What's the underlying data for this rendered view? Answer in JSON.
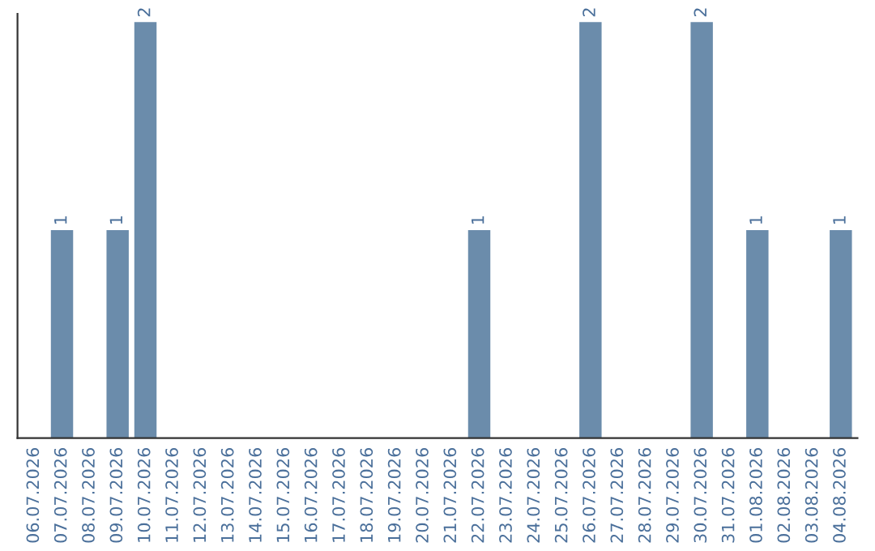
{
  "chart_data": {
    "type": "bar",
    "categories": [
      "06.07.2026",
      "07.07.2026",
      "08.07.2026",
      "09.07.2026",
      "10.07.2026",
      "11.07.2026",
      "12.07.2026",
      "13.07.2026",
      "14.07.2026",
      "15.07.2026",
      "16.07.2026",
      "17.07.2026",
      "18.07.2026",
      "19.07.2026",
      "20.07.2026",
      "21.07.2026",
      "22.07.2026",
      "23.07.2026",
      "24.07.2026",
      "25.07.2026",
      "26.07.2026",
      "27.07.2026",
      "28.07.2026",
      "29.07.2026",
      "30.07.2026",
      "31.07.2026",
      "01.08.2026",
      "02.08.2026",
      "03.08.2026",
      "04.08.2026"
    ],
    "values": [
      0,
      1,
      0,
      1,
      2,
      0,
      0,
      0,
      0,
      0,
      0,
      0,
      0,
      0,
      0,
      0,
      1,
      0,
      0,
      0,
      2,
      0,
      0,
      0,
      2,
      0,
      1,
      0,
      0,
      1
    ],
    "value_labels": [
      null,
      "1",
      null,
      "1",
      "2",
      null,
      null,
      null,
      null,
      null,
      null,
      null,
      null,
      null,
      null,
      null,
      "1",
      null,
      null,
      null,
      "2",
      null,
      null,
      null,
      "2",
      null,
      "1",
      null,
      null,
      "1"
    ],
    "color": "#6b8cab",
    "ylim": [
      0,
      2.04
    ],
    "tick_labels": "x",
    "grid": false,
    "legend": false
  }
}
